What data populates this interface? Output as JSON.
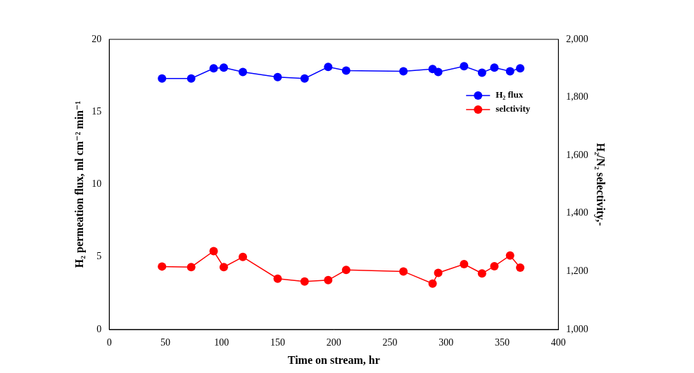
{
  "chart_data": {
    "type": "line",
    "x_label": "Time on stream, hr",
    "y_label": "H₂ permeation flux, ml cm⁻² min⁻¹",
    "y2_label": "H₂/N₂ selectivity,-",
    "xlim": [
      0,
      400
    ],
    "xticks": [
      0,
      50,
      100,
      150,
      200,
      250,
      300,
      350,
      400
    ],
    "ylim": [
      0,
      20
    ],
    "yticks": [
      0,
      5,
      10,
      15,
      20
    ],
    "y2lim": [
      1000,
      2000
    ],
    "y2ticks": [
      1000,
      1200,
      1400,
      1600,
      1800,
      2000
    ],
    "grid": false,
    "legend": "upper right",
    "x": [
      47,
      73,
      93,
      102,
      119,
      150,
      174,
      195,
      211,
      262,
      288,
      293,
      316,
      332,
      343,
      357,
      366
    ],
    "series": [
      {
        "name": "H₂ flux",
        "color": "#0000ff",
        "marker": "circle",
        "line_style": "solid",
        "values": [
          17.3,
          17.3,
          18.0,
          18.05,
          17.75,
          17.4,
          17.3,
          18.1,
          17.85,
          17.8,
          17.95,
          17.75,
          18.15,
          17.7,
          18.05,
          17.8,
          18.0
        ]
      },
      {
        "name": "selctivity",
        "color": "#ff0000",
        "marker": "circle",
        "line_style": "solid",
        "axis": "y2",
        "values": [
          1217,
          1215,
          1270,
          1215,
          1250,
          1175,
          1165,
          1170,
          1205,
          1200,
          1158,
          1195,
          1225,
          1193,
          1218,
          1255,
          1213
        ]
      }
    ]
  }
}
